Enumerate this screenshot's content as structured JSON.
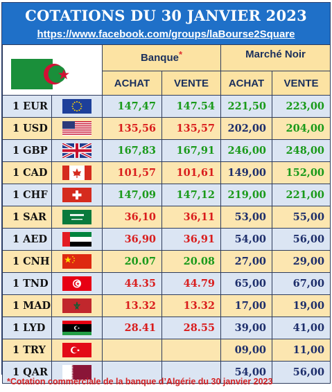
{
  "header": {
    "title": "COTATIONS DU 30 JANVIER 2023",
    "url": "https://www.facebook.com/groups/laBourse2Square"
  },
  "columns": {
    "banque": "Banque",
    "banque_star": "*",
    "marche_noir": "Marché Noir",
    "achat": "ACHAT",
    "vente": "VENTE"
  },
  "colors": {
    "header_bg": "#1f70c8",
    "green": "#1a9a1a",
    "red": "#d91d1d",
    "dark_blue": "#1d2e6b"
  },
  "rows": [
    {
      "currency": "1 EUR",
      "flag": "eu-flag",
      "bank_buy": "147,47",
      "bank_sell": "147.54",
      "bank_color": "green",
      "black_buy": "221,50",
      "black_sell": "223,00",
      "black_color": "green"
    },
    {
      "currency": "1 USD",
      "flag": "us-flag",
      "bank_buy": "135,56",
      "bank_sell": "135,57",
      "bank_color": "red",
      "black_buy": "202,00",
      "black_sell": "204,00",
      "black_color": "mixed"
    },
    {
      "currency": "1 GBP",
      "flag": "uk-flag",
      "bank_buy": "167,83",
      "bank_sell": "167,91",
      "bank_color": "green",
      "black_buy": "246,00",
      "black_sell": "248,00",
      "black_color": "green"
    },
    {
      "currency": "1 CAD",
      "flag": "canada-flag",
      "bank_buy": "101,57",
      "bank_sell": "101,61",
      "bank_color": "red",
      "black_buy": "149,00",
      "black_sell": "152,00",
      "black_color": "mixed"
    },
    {
      "currency": "1 CHF",
      "flag": "swiss-flag",
      "bank_buy": "147,09",
      "bank_sell": "147,12",
      "bank_color": "green",
      "black_buy": "219,00",
      "black_sell": "221,00",
      "black_color": "green"
    },
    {
      "currency": "1 SAR",
      "flag": "saudi-flag",
      "bank_buy": "36,10",
      "bank_sell": "36,11",
      "bank_color": "red",
      "black_buy": "53,00",
      "black_sell": "55,00",
      "black_color": "dark"
    },
    {
      "currency": "1 AED",
      "flag": "uae-flag",
      "bank_buy": "36,90",
      "bank_sell": "36,91",
      "bank_color": "red",
      "black_buy": "54,00",
      "black_sell": "56,00",
      "black_color": "dark"
    },
    {
      "currency": "1 CNH",
      "flag": "china-flag",
      "bank_buy": "20.07",
      "bank_sell": "20.08",
      "bank_color": "green",
      "black_buy": "27,00",
      "black_sell": "29,00",
      "black_color": "dark"
    },
    {
      "currency": "1 TND",
      "flag": "tunisia-flag",
      "bank_buy": "44.35",
      "bank_sell": "44.79",
      "bank_color": "red",
      "black_buy": "65,00",
      "black_sell": "67,00",
      "black_color": "dark"
    },
    {
      "currency": "1 MAD",
      "flag": "morocco-flag",
      "bank_buy": "13.32",
      "bank_sell": "13.32",
      "bank_color": "red",
      "black_buy": "17,00",
      "black_sell": "19,00",
      "black_color": "dark"
    },
    {
      "currency": "1 LYD",
      "flag": "libya-flag",
      "bank_buy": "28.41",
      "bank_sell": "28.55",
      "bank_color": "red",
      "black_buy": "39,00",
      "black_sell": "41,00",
      "black_color": "dark"
    },
    {
      "currency": "1 TRY",
      "flag": "turkey-flag",
      "bank_buy": "",
      "bank_sell": "",
      "bank_color": "red",
      "black_buy": "09,00",
      "black_sell": "11,00",
      "black_color": "dark"
    },
    {
      "currency": "1 QAR",
      "flag": "qatar-flag",
      "bank_buy": "",
      "bank_sell": "",
      "bank_color": "red",
      "black_buy": "54,00",
      "black_sell": "56,00",
      "black_color": "dark"
    }
  ],
  "footer": "*Cotation commerciale de la banque d’Algérie du 30 janvier 2023"
}
